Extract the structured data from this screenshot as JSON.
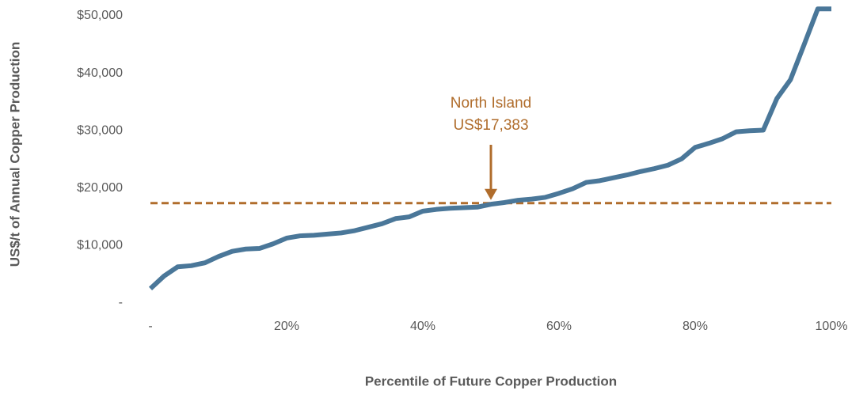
{
  "chart_data": {
    "type": "line",
    "x_label": "Percentile of Future Copper Production",
    "y_label": "US$/t of Annual Copper Production",
    "x": [
      0,
      2,
      4,
      6,
      8,
      10,
      12,
      14,
      16,
      18,
      20,
      22,
      24,
      26,
      28,
      30,
      32,
      34,
      36,
      38,
      40,
      42,
      44,
      46,
      48,
      50,
      52,
      54,
      56,
      58,
      60,
      62,
      64,
      66,
      68,
      70,
      72,
      74,
      76,
      78,
      80,
      82,
      84,
      86,
      88,
      90,
      92,
      94,
      96,
      98,
      100
    ],
    "series": [
      {
        "color": "#4a7799",
        "values": [
          2500,
          4700,
          6300,
          6500,
          7000,
          8100,
          9000,
          9400,
          9500,
          10300,
          11300,
          11700,
          11800,
          12000,
          12200,
          12600,
          13200,
          13800,
          14700,
          15000,
          16000,
          16300,
          16500,
          16600,
          16700,
          17200,
          17500,
          17900,
          18100,
          18400,
          19100,
          19900,
          21000,
          21300,
          21800,
          22300,
          22900,
          23400,
          24000,
          25100,
          27100,
          27800,
          28600,
          29800,
          30000,
          30100,
          35600,
          38900,
          45000,
          51200,
          51200
        ]
      }
    ],
    "xlim": [
      0,
      100
    ],
    "xticks": [
      {
        "value": 0,
        "label": "-"
      },
      {
        "value": 20,
        "label": "20%"
      },
      {
        "value": 40,
        "label": "40%"
      },
      {
        "value": 60,
        "label": "60%"
      },
      {
        "value": 80,
        "label": "80%"
      },
      {
        "value": 100,
        "label": "100%"
      }
    ],
    "ylim": [
      0,
      52000
    ],
    "yticks": [
      {
        "value": 0,
        "label": "-"
      },
      {
        "value": 10000,
        "label": "$10,000"
      },
      {
        "value": 20000,
        "label": "$20,000"
      },
      {
        "value": 30000,
        "label": "$30,000"
      },
      {
        "value": 40000,
        "label": "$40,000"
      },
      {
        "value": 50000,
        "label": "$50,000"
      }
    ],
    "reference_line": {
      "value": 17383,
      "x": 50,
      "color": "#b06d2c",
      "label": [
        "North Island",
        "US$17,383"
      ]
    }
  }
}
